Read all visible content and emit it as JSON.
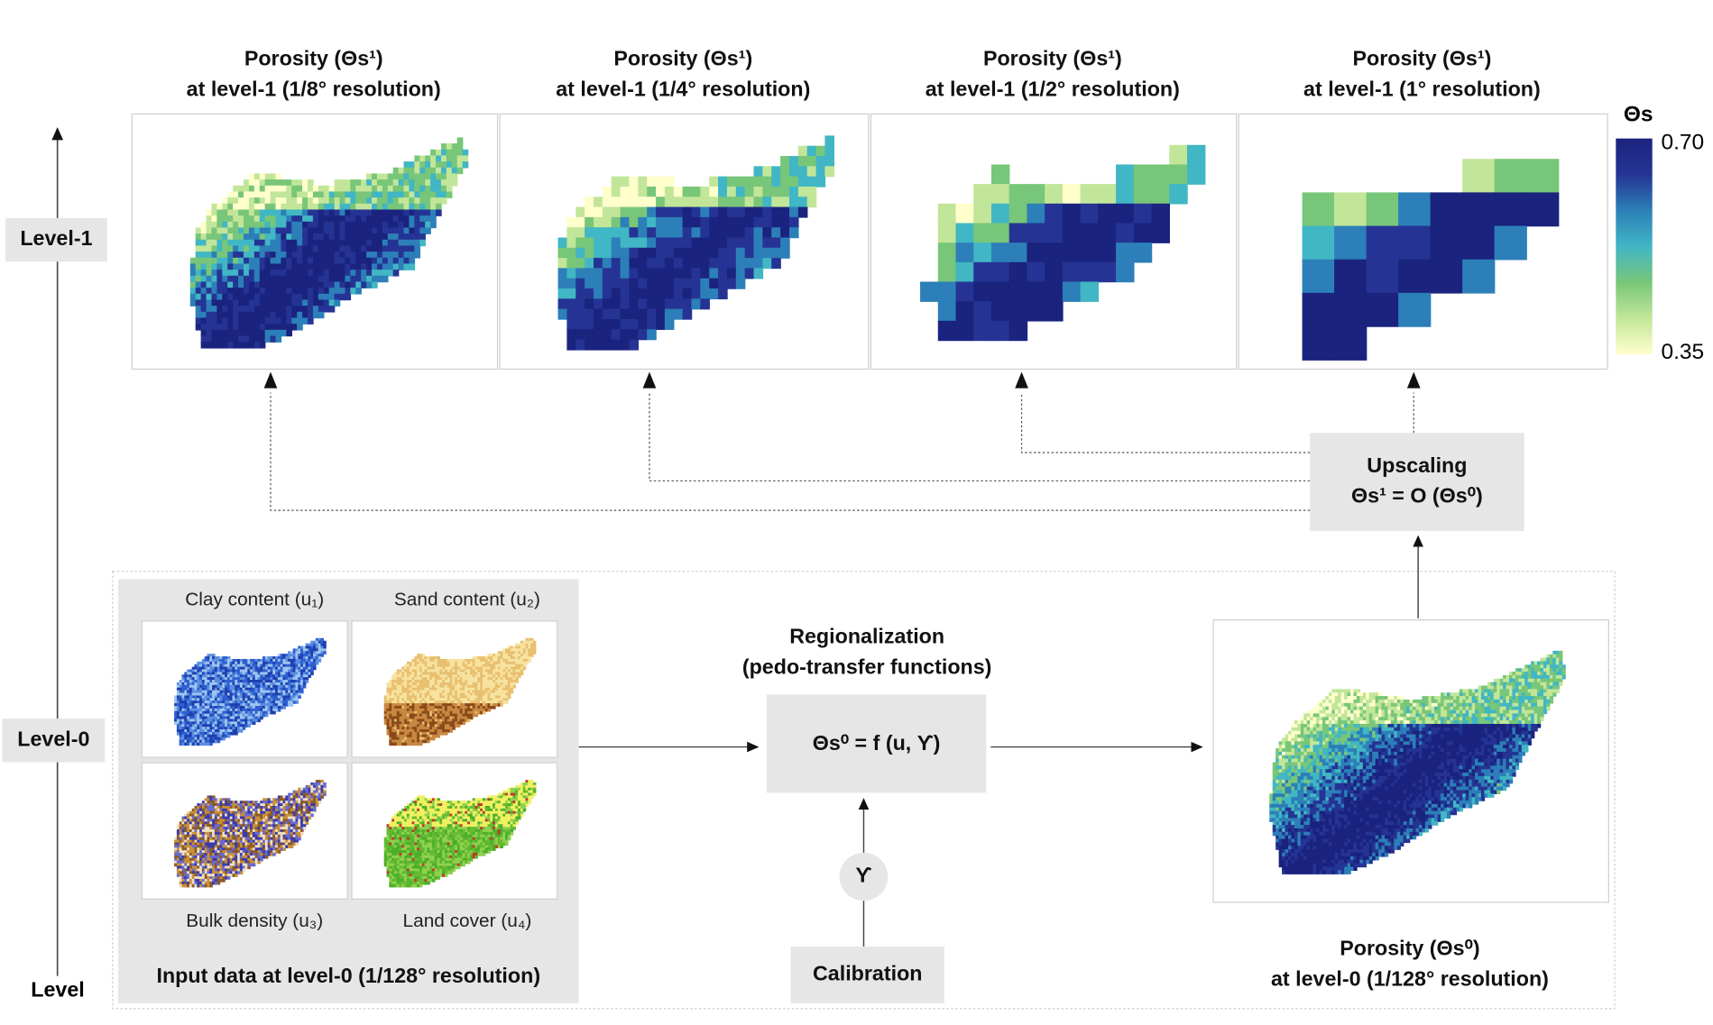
{
  "level_axis": {
    "label": "Level",
    "level1": "Level-1",
    "level0": "Level-0"
  },
  "level1_panels": [
    {
      "title": "Porosity (Θs¹)",
      "subtitle": "at level-1 (1/8° resolution)",
      "resolution": "1/8°"
    },
    {
      "title": "Porosity (Θs¹)",
      "subtitle": "at level-1 (1/4° resolution)",
      "resolution": "1/4°"
    },
    {
      "title": "Porosity (Θs¹)",
      "subtitle": "at level-1 (1/2° resolution)",
      "resolution": "1/2°"
    },
    {
      "title": "Porosity (Θs¹)",
      "subtitle": "at level-1 (1° resolution)",
      "resolution": "1°"
    }
  ],
  "colorbar": {
    "label": "Θs",
    "max": "0.70",
    "min": "0.35",
    "colors": [
      "#ffffcc",
      "#c2e699",
      "#78c679",
      "#41b6c4",
      "#2c7fb8",
      "#253494",
      "#1a237e"
    ]
  },
  "upscaling": {
    "label": "Upscaling",
    "formula": "Θs¹ = O (Θs⁰)"
  },
  "inputs": {
    "title": "Input data at level-0 (1/128° resolution)",
    "items": [
      {
        "label": "Clay content (u₁)"
      },
      {
        "label": "Sand content (u₂)"
      },
      {
        "label": "Bulk density (u₃)"
      },
      {
        "label": "Land cover (u₄)"
      }
    ]
  },
  "regionalization": {
    "title": "Regionalization",
    "subtitle": "(pedo-transfer functions)",
    "formula": "Θs⁰ = f (u, ϒ)"
  },
  "calibration": {
    "symbol": "ϒ",
    "label": "Calibration"
  },
  "level0_output": {
    "title": "Porosity (Θs⁰)",
    "subtitle": "at level-0 (1/128° resolution)"
  }
}
